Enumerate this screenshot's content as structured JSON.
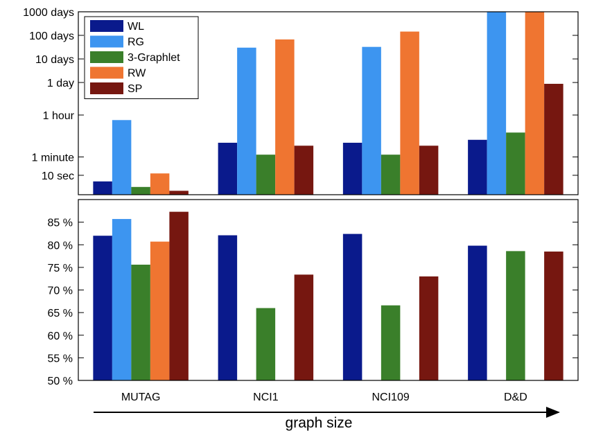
{
  "colors": {
    "WL": "#0a1a8c",
    "RG": "#3d95f0",
    "3-Graphlet": "#3a7f2a",
    "RW": "#ef7531",
    "SP": "#761710"
  },
  "chart_data": [
    {
      "type": "bar",
      "scale": "log",
      "unit": "seconds",
      "categories": [
        "MUTAG",
        "NCI1",
        "NCI109",
        "D&D"
      ],
      "series": [
        {
          "name": "WL",
          "values": [
            5.5,
            240,
            240,
            320
          ]
        },
        {
          "name": "RG",
          "values": [
            2200,
            2600000,
            2800000,
            86400000
          ]
        },
        {
          "name": "3-Graphlet",
          "values": [
            3.2,
            75,
            75,
            650
          ]
        },
        {
          "name": "RW",
          "values": [
            12,
            5800000,
            12500000,
            86400000
          ]
        },
        {
          "name": "SP",
          "values": [
            2.2,
            180,
            180,
            76000
          ]
        }
      ],
      "ylim": [
        1.5,
        86400000
      ],
      "yticks": [
        {
          "value": 10,
          "label": "10 sec"
        },
        {
          "value": 60,
          "label": "1 minute"
        },
        {
          "value": 3600,
          "label": "1 hour"
        },
        {
          "value": 86400,
          "label": "1 day"
        },
        {
          "value": 864000,
          "label": "10 days"
        },
        {
          "value": 8640000,
          "label": "100 days"
        },
        {
          "value": 86400000,
          "label": "1000 days"
        }
      ],
      "legend": {
        "placement": "top-left",
        "entries": [
          "WL",
          "RG",
          "3-Graphlet",
          "RW",
          "SP"
        ]
      }
    },
    {
      "type": "bar",
      "categories": [
        "MUTAG",
        "NCI1",
        "NCI109",
        "D&D"
      ],
      "series": [
        {
          "name": "WL",
          "values": [
            82.0,
            82.1,
            82.4,
            79.8
          ]
        },
        {
          "name": "RG",
          "values": [
            85.7,
            null,
            null,
            null
          ]
        },
        {
          "name": "3-Graphlet",
          "values": [
            75.6,
            66.0,
            66.6,
            78.6
          ]
        },
        {
          "name": "RW",
          "values": [
            80.7,
            null,
            null,
            null
          ]
        },
        {
          "name": "SP",
          "values": [
            87.3,
            73.4,
            73.0,
            78.5
          ]
        }
      ],
      "ylim": [
        50,
        90
      ],
      "yticks": [
        {
          "value": 50,
          "label": "50 %"
        },
        {
          "value": 55,
          "label": "55 %"
        },
        {
          "value": 60,
          "label": "60 %"
        },
        {
          "value": 65,
          "label": "65 %"
        },
        {
          "value": 70,
          "label": "70 %"
        },
        {
          "value": 75,
          "label": "75 %"
        },
        {
          "value": 80,
          "label": "80 %"
        },
        {
          "value": 85,
          "label": "85 %"
        }
      ],
      "xlabel": "graph size"
    }
  ]
}
